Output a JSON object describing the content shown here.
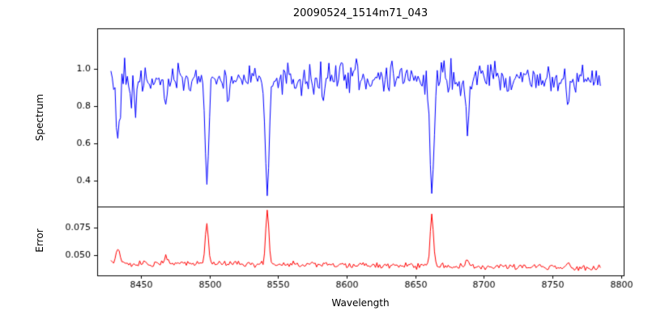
{
  "figure": {
    "title": "20090524_1514m71_043",
    "xlabel": "Wavelength",
    "background": "#ffffff",
    "frame_color": "#000000"
  },
  "x_axis": {
    "xlim": [
      8418,
      8802
    ],
    "ticks": {
      "values": [
        8450,
        8500,
        8550,
        8600,
        8650,
        8700,
        8750,
        8800
      ],
      "labels": [
        "8450",
        "8500",
        "8550",
        "8600",
        "8650",
        "8700",
        "8750",
        "8800"
      ]
    }
  },
  "chart_data": [
    {
      "type": "line",
      "name": "spectrum",
      "ylabel": "Spectrum",
      "color": "#0000ff",
      "ylim": [
        0.26,
        1.22
      ],
      "yticks": {
        "values": [
          0.4,
          0.6,
          0.8,
          1.0
        ],
        "labels": [
          "0.4",
          "0.6",
          "0.8",
          "1.0"
        ]
      },
      "x_start": 8428,
      "x_end": 8785,
      "x_step": 1.0,
      "continuum": 0.95,
      "noise_sigma": 0.042,
      "edge_noise_boost": {
        "below_x": 8447,
        "factor": 1.9
      },
      "absorption_lines": [
        {
          "center": 8498.0,
          "depth": 0.57,
          "sigma": 1.3,
          "label": "deep line, min ~0.41"
        },
        {
          "center": 8542.1,
          "depth": 0.68,
          "sigma": 1.4,
          "label": "deepest line, min ~0.30"
        },
        {
          "center": 8662.1,
          "depth": 0.67,
          "sigma": 1.4,
          "label": "deep line, min ~0.31"
        },
        {
          "center": 8433.0,
          "depth": 0.3,
          "sigma": 1.1
        },
        {
          "center": 8468.0,
          "depth": 0.17,
          "sigma": 1.0
        },
        {
          "center": 8514.0,
          "depth": 0.12,
          "sigma": 0.9
        },
        {
          "center": 8583.0,
          "depth": 0.1,
          "sigma": 0.9
        },
        {
          "center": 8688.0,
          "depth": 0.32,
          "sigma": 1.1
        },
        {
          "center": 8717.0,
          "depth": 0.1,
          "sigma": 0.9
        },
        {
          "center": 8762.0,
          "depth": 0.14,
          "sigma": 1.0
        }
      ],
      "seed": 20090524
    },
    {
      "type": "line",
      "name": "error",
      "ylabel": "Error",
      "color": "#ff0000",
      "ylim": [
        0.032,
        0.094
      ],
      "yticks": {
        "values": [
          0.05,
          0.075
        ],
        "labels": [
          "0.050",
          "0.075"
        ]
      },
      "x_start": 8428,
      "x_end": 8785,
      "x_step": 1.0,
      "baseline_start": 0.0435,
      "baseline_end": 0.0385,
      "noise_sigma": 0.0013,
      "peaks": [
        {
          "center": 8498.0,
          "amp": 0.035,
          "sigma": 1.2,
          "label": "peak ~0.077"
        },
        {
          "center": 8542.1,
          "amp": 0.048,
          "sigma": 1.2,
          "label": "peak ~0.089"
        },
        {
          "center": 8662.1,
          "amp": 0.046,
          "sigma": 1.2,
          "label": "peak ~0.088"
        },
        {
          "center": 8433.0,
          "amp": 0.012,
          "sigma": 1.2
        },
        {
          "center": 8468.0,
          "amp": 0.008,
          "sigma": 1.0
        },
        {
          "center": 8688.0,
          "amp": 0.006,
          "sigma": 1.0
        },
        {
          "center": 8762.0,
          "amp": 0.005,
          "sigma": 1.0
        }
      ],
      "seed": 1514
    }
  ]
}
